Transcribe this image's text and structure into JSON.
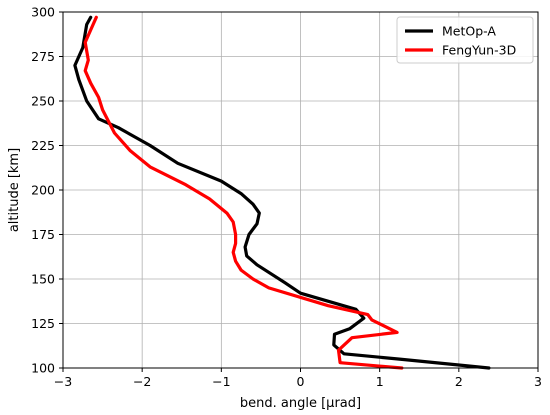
{
  "chart_data": {
    "type": "line",
    "title": "",
    "xlabel": "bend. angle [μrad]",
    "ylabel": "altitude [km]",
    "xlim": [
      -3,
      3
    ],
    "ylim": [
      100,
      300
    ],
    "xticks": [
      -3,
      -2,
      -1,
      0,
      1,
      2,
      3
    ],
    "yticks": [
      100,
      125,
      150,
      175,
      200,
      225,
      250,
      275,
      300
    ],
    "xtick_labels": [
      "−3",
      "−2",
      "−1",
      "0",
      "1",
      "2",
      "3"
    ],
    "ytick_labels": [
      "100",
      "125",
      "150",
      "175",
      "200",
      "225",
      "250",
      "275",
      "300"
    ],
    "grid": true,
    "legend_position": "top-right",
    "series": [
      {
        "name": "MetOp-A",
        "color": "#000000",
        "points": [
          [
            2.38,
            100
          ],
          [
            1.25,
            105
          ],
          [
            0.55,
            108
          ],
          [
            0.42,
            113
          ],
          [
            0.43,
            119
          ],
          [
            0.62,
            122
          ],
          [
            0.8,
            128
          ],
          [
            0.7,
            133
          ],
          [
            0.0,
            142
          ],
          [
            -0.2,
            148
          ],
          [
            -0.55,
            158
          ],
          [
            -0.68,
            163
          ],
          [
            -0.7,
            168
          ],
          [
            -0.65,
            175
          ],
          [
            -0.55,
            181
          ],
          [
            -0.52,
            187
          ],
          [
            -0.6,
            192
          ],
          [
            -0.75,
            198
          ],
          [
            -1.0,
            205
          ],
          [
            -1.55,
            215
          ],
          [
            -1.9,
            225
          ],
          [
            -2.3,
            235
          ],
          [
            -2.55,
            240
          ],
          [
            -2.7,
            250
          ],
          [
            -2.8,
            262
          ],
          [
            -2.85,
            270
          ],
          [
            -2.75,
            280
          ],
          [
            -2.7,
            293
          ],
          [
            -2.65,
            297
          ]
        ]
      },
      {
        "name": "FengYun-3D",
        "color": "#ff0000",
        "points": [
          [
            1.28,
            100
          ],
          [
            0.5,
            103
          ],
          [
            0.48,
            110
          ],
          [
            0.65,
            117
          ],
          [
            1.22,
            120
          ],
          [
            0.9,
            127
          ],
          [
            0.85,
            130
          ],
          [
            0.35,
            135
          ],
          [
            -0.4,
            145
          ],
          [
            -0.6,
            150
          ],
          [
            -0.75,
            155
          ],
          [
            -0.82,
            160
          ],
          [
            -0.85,
            165
          ],
          [
            -0.82,
            170
          ],
          [
            -0.82,
            175
          ],
          [
            -0.85,
            182
          ],
          [
            -0.93,
            187
          ],
          [
            -1.15,
            195
          ],
          [
            -1.45,
            203
          ],
          [
            -1.9,
            213
          ],
          [
            -2.15,
            222
          ],
          [
            -2.35,
            232
          ],
          [
            -2.5,
            245
          ],
          [
            -2.55,
            252
          ],
          [
            -2.65,
            260
          ],
          [
            -2.72,
            267
          ],
          [
            -2.68,
            273
          ],
          [
            -2.72,
            283
          ],
          [
            -2.62,
            293
          ],
          [
            -2.58,
            297
          ]
        ]
      }
    ]
  }
}
